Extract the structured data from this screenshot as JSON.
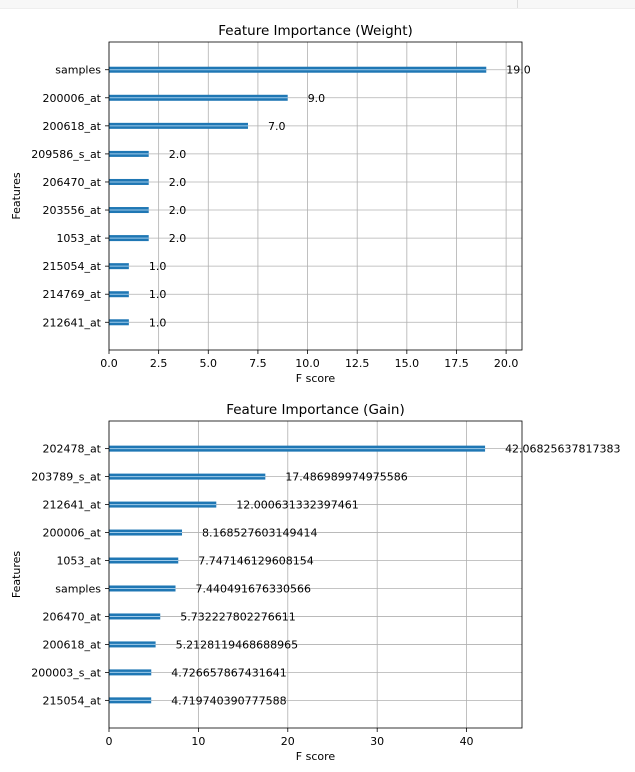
{
  "chart_data": [
    {
      "type": "bar",
      "orientation": "horizontal",
      "title": "Feature Importance (Weight)",
      "xlabel": "F score",
      "ylabel": "Features",
      "xlim": [
        0,
        20.8
      ],
      "xticks": [
        0.0,
        2.5,
        5.0,
        7.5,
        10.0,
        12.5,
        15.0,
        17.5,
        20.0
      ],
      "xtick_labels": [
        "0.0",
        "2.5",
        "5.0",
        "7.5",
        "10.0",
        "12.5",
        "15.0",
        "17.5",
        "20.0"
      ],
      "grid": true,
      "bar_color": "#1f77b4",
      "categories": [
        "samples",
        "200006_at",
        "200618_at",
        "209586_s_at",
        "206470_at",
        "203556_at",
        "1053_at",
        "215054_at",
        "214769_at",
        "212641_at"
      ],
      "values": [
        19.0,
        9.0,
        7.0,
        2.0,
        2.0,
        2.0,
        2.0,
        1.0,
        1.0,
        1.0
      ],
      "value_labels": [
        "19.0",
        "9.0",
        "7.0",
        "2.0",
        "2.0",
        "2.0",
        "2.0",
        "1.0",
        "1.0",
        "1.0"
      ]
    },
    {
      "type": "bar",
      "orientation": "horizontal",
      "title": "Feature Importance (Gain)",
      "xlabel": "F score",
      "ylabel": "Features",
      "xlim": [
        0,
        46.2
      ],
      "xticks": [
        0,
        10,
        20,
        30,
        40
      ],
      "xtick_labels": [
        "0",
        "10",
        "20",
        "30",
        "40"
      ],
      "grid": true,
      "bar_color": "#1f77b4",
      "categories": [
        "202478_at",
        "203789_s_at",
        "212641_at",
        "200006_at",
        "1053_at",
        "samples",
        "206470_at",
        "200618_at",
        "200003_s_at",
        "215054_at"
      ],
      "values": [
        42.06825637817383,
        17.486989974975586,
        12.000631332397461,
        8.168527603149414,
        7.747146129608154,
        7.440491676330566,
        5.732227802276611,
        5.2128119468688965,
        4.726657867431641,
        4.719740390777588
      ],
      "value_labels": [
        "42.06825637817383",
        "17.486989974975586",
        "12.000631332397461",
        "8.168527603149414",
        "7.747146129608154",
        "7.440491676330566",
        "5.732227802276611",
        "5.2128119468688965",
        "4.726657867431641",
        "4.719740390777588"
      ]
    }
  ]
}
